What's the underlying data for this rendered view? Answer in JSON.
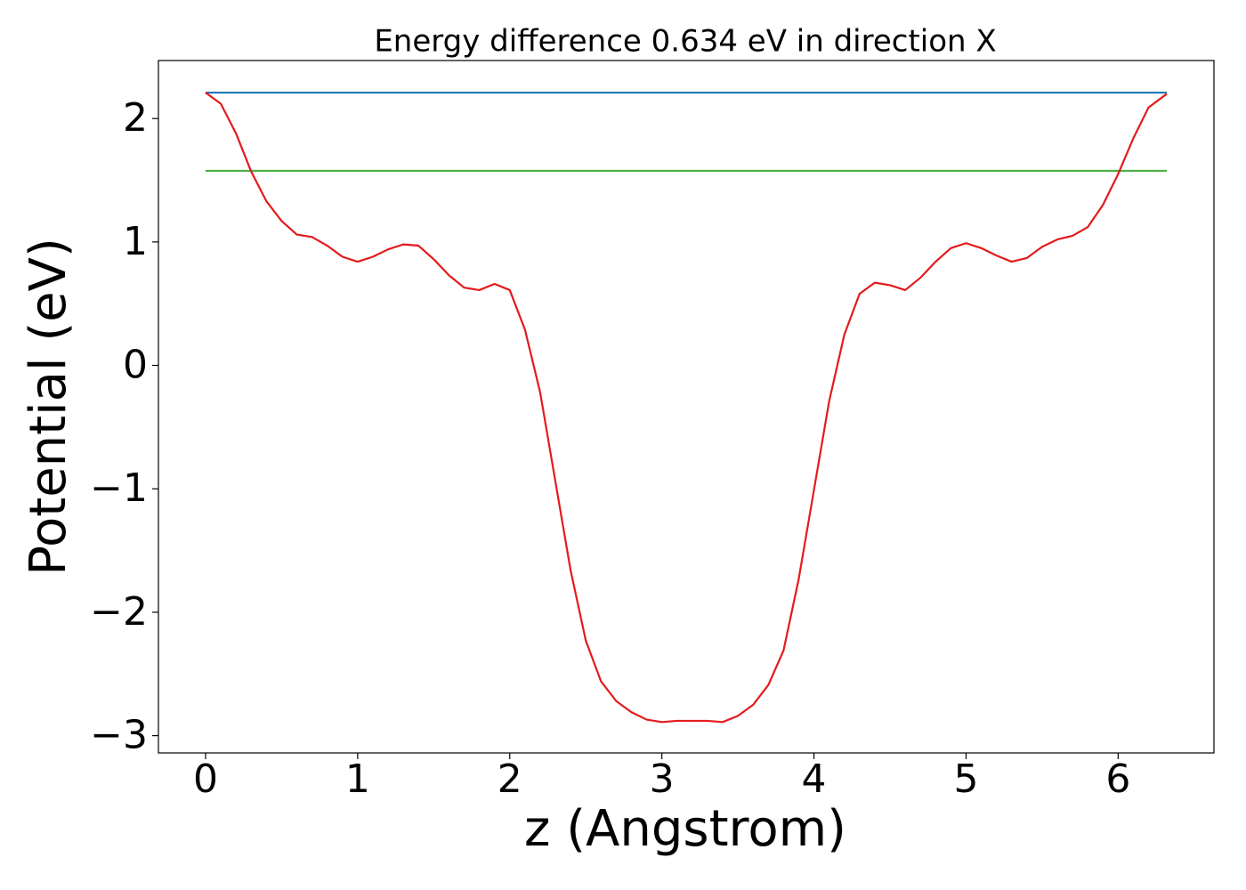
{
  "chart_data": {
    "type": "line",
    "title": "Energy difference 0.634 eV in direction X",
    "xlabel": "z (Angstrom)",
    "ylabel": "Potential (eV)",
    "xlim": [
      -0.31,
      6.63
    ],
    "ylim": [
      -3.14,
      2.47
    ],
    "xticks": [
      0,
      1,
      2,
      3,
      4,
      5,
      6
    ],
    "yticks": [
      {
        "value": -3,
        "label": "−3"
      },
      {
        "value": -2,
        "label": "−2"
      },
      {
        "value": -1,
        "label": "−1"
      },
      0,
      1,
      2
    ],
    "grid": false,
    "series": [
      {
        "color": "#1f77b4",
        "x": [
          0,
          6.32
        ],
        "values": [
          2.21,
          2.21
        ]
      },
      {
        "color": "#4daf4a",
        "x": [
          0,
          6.32
        ],
        "values": [
          1.576,
          1.576
        ]
      },
      {
        "color": "#e41a1c",
        "x": [
          0,
          0.1,
          0.2,
          0.3,
          0.4,
          0.5,
          0.6,
          0.7,
          0.8,
          0.9,
          1.0,
          1.1,
          1.2,
          1.3,
          1.4,
          1.5,
          1.6,
          1.7,
          1.8,
          1.9,
          2.0,
          2.1,
          2.2,
          2.3,
          2.4,
          2.5,
          2.6,
          2.7,
          2.8,
          2.9,
          3.0,
          3.1,
          3.2,
          3.3,
          3.4,
          3.5,
          3.6,
          3.7,
          3.8,
          3.9,
          4.0,
          4.1,
          4.2,
          4.3,
          4.4,
          4.5,
          4.6,
          4.7,
          4.8,
          4.9,
          5.0,
          5.1,
          5.2,
          5.3,
          5.4,
          5.5,
          5.6,
          5.7,
          5.8,
          5.9,
          6.0,
          6.1,
          6.2,
          6.32
        ],
        "values": [
          2.21,
          2.12,
          1.88,
          1.57,
          1.33,
          1.17,
          1.06,
          1.04,
          0.97,
          0.88,
          0.84,
          0.88,
          0.94,
          0.98,
          0.97,
          0.86,
          0.73,
          0.63,
          0.61,
          0.66,
          0.61,
          0.29,
          -0.22,
          -0.94,
          -1.66,
          -2.23,
          -2.56,
          -2.72,
          -2.81,
          -2.87,
          -2.89,
          -2.88,
          -2.88,
          -2.88,
          -2.89,
          -2.84,
          -2.75,
          -2.59,
          -2.31,
          -1.73,
          -1.01,
          -0.29,
          0.25,
          0.58,
          0.67,
          0.65,
          0.61,
          0.71,
          0.84,
          0.95,
          0.99,
          0.95,
          0.89,
          0.84,
          0.87,
          0.96,
          1.02,
          1.05,
          1.12,
          1.3,
          1.55,
          1.84,
          2.09,
          2.2
        ]
      }
    ]
  }
}
